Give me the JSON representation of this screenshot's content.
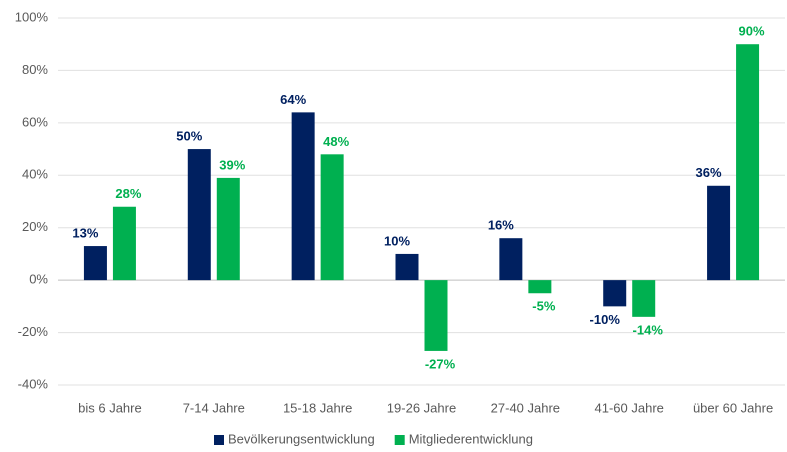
{
  "chart_data": {
    "type": "bar",
    "categories": [
      "bis 6 Jahre",
      "7-14 Jahre",
      "15-18 Jahre",
      "19-26 Jahre",
      "27-40 Jahre",
      "41-60 Jahre",
      "über 60 Jahre"
    ],
    "series": [
      {
        "name": "Bevölkerungsentwicklung",
        "color": "#002060",
        "values": [
          13,
          50,
          64,
          10,
          16,
          -10,
          36
        ],
        "value_labels": [
          "13%",
          "50%",
          "64%",
          "10%",
          "16%",
          "-10%",
          "36%"
        ]
      },
      {
        "name": "Mitgliederentwicklung",
        "color": "#00b050",
        "values": [
          28,
          39,
          48,
          -27,
          -5,
          -14,
          90
        ],
        "value_labels": [
          "28%",
          "39%",
          "48%",
          "-27%",
          "-5%",
          "-14%",
          "90%"
        ]
      }
    ],
    "ylim": [
      -40,
      100
    ],
    "yticks": [
      {
        "value": -40,
        "label": "-40%"
      },
      {
        "value": -20,
        "label": "-20%"
      },
      {
        "value": 0,
        "label": "0%"
      },
      {
        "value": 20,
        "label": "20%"
      },
      {
        "value": 40,
        "label": "40%"
      },
      {
        "value": 60,
        "label": "60%"
      },
      {
        "value": 80,
        "label": "80%"
      },
      {
        "value": 100,
        "label": "100%"
      }
    ],
    "grid": true,
    "legend": "bottom"
  }
}
